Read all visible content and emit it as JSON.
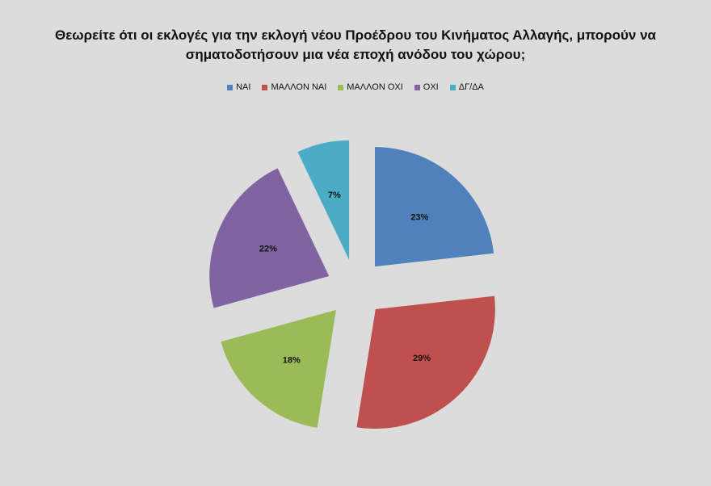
{
  "chart_data": {
    "type": "pie",
    "title": "Θεωρείτε ότι οι εκλογές για την εκλογή νέου Προέδρου του Κινήματος Αλλαγής, μπορούν να σηματοδοτήσουν μια νέα εποχή ανόδου του χώρου;",
    "legend_position": "top",
    "exploded": true,
    "categories": [
      "ΝΑΙ",
      "ΜΑΛΛΟΝ ΝΑΙ",
      "ΜΑΛΛΟΝ ΟΧΙ",
      "ΟΧΙ",
      "ΔΓ/ΔΑ"
    ],
    "values": [
      23,
      29,
      18,
      22,
      7
    ],
    "labels": [
      "23%",
      "29%",
      "18%",
      "22%",
      "7%"
    ],
    "colors": [
      "#4f81bd",
      "#c0504d",
      "#9bbb59",
      "#8064a2",
      "#4bacc6"
    ]
  }
}
